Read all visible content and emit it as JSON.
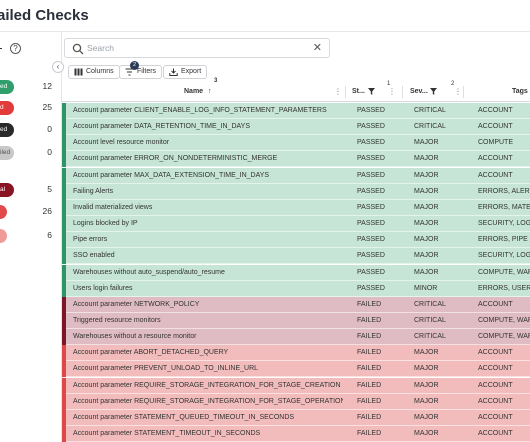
{
  "page": {
    "title": "ailed Checks"
  },
  "sidebar": {
    "help_glyph": "?",
    "collapse_glyph": "‹",
    "stats": [
      {
        "label": "ed",
        "count": "12",
        "color": "#2f9e6b"
      },
      {
        "label": "d",
        "count": "25",
        "color": "#e23b3b"
      },
      {
        "label": "ed",
        "count": "0",
        "color": "#2a2a2a"
      },
      {
        "label": "iled",
        "count": "0",
        "color": "#c8c8c8"
      },
      {
        "label": "al",
        "count": "5",
        "color": "#8a1424"
      },
      {
        "label": "",
        "count": "26",
        "color": "#e24a4a"
      },
      {
        "label": "",
        "count": "6",
        "color": "#f09a9a"
      }
    ]
  },
  "search": {
    "placeholder": "Search",
    "icon": "search-icon",
    "clear_glyph": "✕"
  },
  "toolbar": {
    "columns_label": "Columns",
    "filters_label": "Filters",
    "filters_badge": "2",
    "export_label": "Export"
  },
  "table": {
    "columns": {
      "name": "Name",
      "name_sort_arrow": "↑",
      "name_sort_rank": "3",
      "status": "St...",
      "severity": "Sev...",
      "severity_sort_rank": "2",
      "tags": "Tags",
      "status_sort_rank": "1"
    },
    "colors": {
      "passed": "#c6e5d7",
      "failed_critical": "#dfbcc3",
      "failed_major": "#f2bcbc"
    },
    "rows": [
      {
        "name": "Account parameter CLIENT_ENABLE_LOG_INFO_STATEMENT_PARAMETERS",
        "status": "PASSED",
        "severity": "CRITICAL",
        "tags": "ACCOUNT",
        "kind": "passed"
      },
      {
        "name": "Account parameter DATA_RETENTION_TIME_IN_DAYS",
        "status": "PASSED",
        "severity": "CRITICAL",
        "tags": "ACCOUNT",
        "kind": "passed"
      },
      {
        "name": "Account level resource monitor",
        "status": "PASSED",
        "severity": "MAJOR",
        "tags": "COMPUTE",
        "kind": "passed"
      },
      {
        "name": "Account parameter ERROR_ON_NONDETERMINISTIC_MERGE",
        "status": "PASSED",
        "severity": "MAJOR",
        "tags": "ACCOUNT",
        "kind": "passed"
      },
      {
        "name": "Account parameter MAX_DATA_EXTENSION_TIME_IN_DAYS",
        "status": "PASSED",
        "severity": "MAJOR",
        "tags": "ACCOUNT",
        "kind": "passed"
      },
      {
        "name": "Failing Alerts",
        "status": "PASSED",
        "severity": "MAJOR",
        "tags": "ERRORS, ALERTS",
        "kind": "passed"
      },
      {
        "name": "Invalid materialized views",
        "status": "PASSED",
        "severity": "MAJOR",
        "tags": "ERRORS, MATERIA",
        "kind": "passed"
      },
      {
        "name": "Logins blocked by IP",
        "status": "PASSED",
        "severity": "MAJOR",
        "tags": "SECURITY, LOGIN",
        "kind": "passed"
      },
      {
        "name": "Pipe errors",
        "status": "PASSED",
        "severity": "MAJOR",
        "tags": "ERRORS, PIPE",
        "kind": "passed"
      },
      {
        "name": "SSO enabled",
        "status": "PASSED",
        "severity": "MAJOR",
        "tags": "SECURITY, LOGIN",
        "kind": "passed"
      },
      {
        "name": "Warehouses without auto_suspend/auto_resume",
        "status": "PASSED",
        "severity": "MAJOR",
        "tags": "COMPUTE, WARE",
        "kind": "passed"
      },
      {
        "name": "Users login failures",
        "status": "PASSED",
        "severity": "MINOR",
        "tags": "ERRORS, USER",
        "kind": "passed"
      },
      {
        "name": "Account parameter NETWORK_POLICY",
        "status": "FAILED",
        "severity": "CRITICAL",
        "tags": "ACCOUNT",
        "kind": "failed-critical"
      },
      {
        "name": "Triggered resource monitors",
        "status": "FAILED",
        "severity": "CRITICAL",
        "tags": "COMPUTE, WARE",
        "kind": "failed-critical"
      },
      {
        "name": "Warehouses without a resource monitor",
        "status": "FAILED",
        "severity": "CRITICAL",
        "tags": "COMPUTE, WARE",
        "kind": "failed-critical"
      },
      {
        "name": "Account parameter ABORT_DETACHED_QUERY",
        "status": "FAILED",
        "severity": "MAJOR",
        "tags": "ACCOUNT",
        "kind": "failed-major"
      },
      {
        "name": "Account parameter PREVENT_UNLOAD_TO_INLINE_URL",
        "status": "FAILED",
        "severity": "MAJOR",
        "tags": "ACCOUNT",
        "kind": "failed-major"
      },
      {
        "name": "Account parameter REQUIRE_STORAGE_INTEGRATION_FOR_STAGE_CREATION",
        "status": "FAILED",
        "severity": "MAJOR",
        "tags": "ACCOUNT",
        "kind": "failed-major"
      },
      {
        "name": "Account parameter REQUIRE_STORAGE_INTEGRATION_FOR_STAGE_OPERATION",
        "status": "FAILED",
        "severity": "MAJOR",
        "tags": "ACCOUNT",
        "kind": "failed-major"
      },
      {
        "name": "Account parameter STATEMENT_QUEUED_TIMEOUT_IN_SECONDS",
        "status": "FAILED",
        "severity": "MAJOR",
        "tags": "ACCOUNT",
        "kind": "failed-major"
      },
      {
        "name": "Account parameter STATEMENT_TIMEOUT_IN_SECONDS",
        "status": "FAILED",
        "severity": "MAJOR",
        "tags": "ACCOUNT",
        "kind": "failed-major"
      }
    ]
  }
}
